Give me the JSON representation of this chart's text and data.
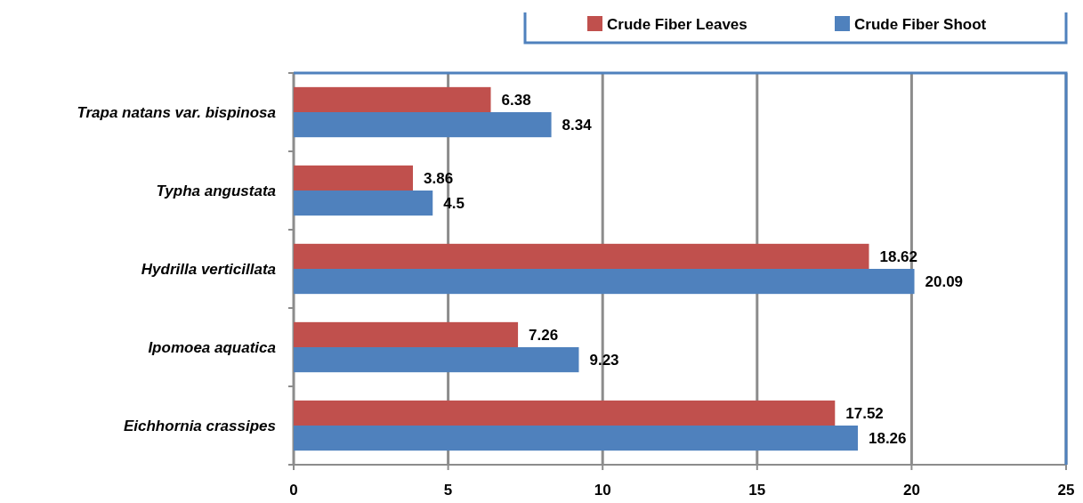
{
  "chart_data": {
    "type": "bar",
    "orientation": "horizontal",
    "categories": [
      "Trapa natans var. bispinosa",
      "Typha angustata",
      "Hydrilla verticillata",
      "Ipomoea aquatica",
      "Eichhornia crassipes"
    ],
    "series": [
      {
        "name": "Crude Fiber Leaves",
        "color": "#c0504d",
        "values": [
          6.38,
          3.86,
          18.62,
          7.26,
          17.52
        ]
      },
      {
        "name": "Crude Fiber Shoot",
        "color": "#4f81bd",
        "values": [
          8.34,
          4.5,
          20.09,
          9.23,
          18.26
        ]
      }
    ],
    "xlim": [
      0,
      25
    ],
    "xticks": [
      0,
      5,
      10,
      15,
      20,
      25
    ],
    "grid": "x",
    "legend": "top",
    "data_labels": true
  }
}
